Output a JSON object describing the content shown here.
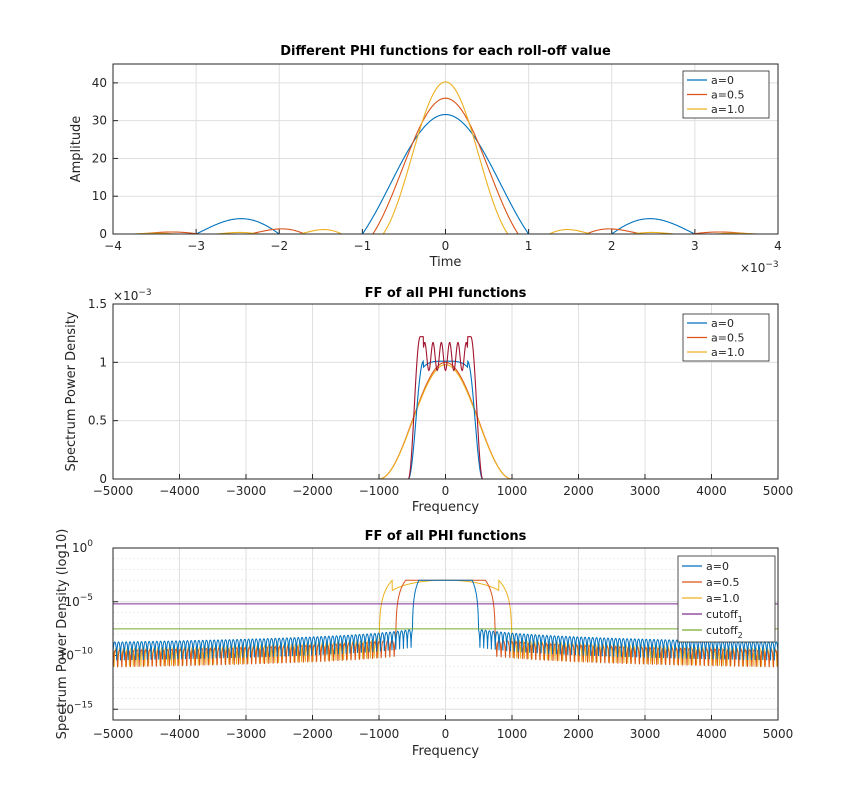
{
  "colors": {
    "blue": "#0072BD",
    "orange": "#D95319",
    "yellow": "#EDB120",
    "purple": "#7E2F8E",
    "green": "#77AC30",
    "darkred": "#A2142F"
  },
  "chart_data": [
    {
      "type": "line",
      "title": "Different PHI functions for each roll-off value",
      "xlabel": "Time",
      "ylabel": "Amplitude",
      "xlim": [
        -0.004,
        0.004
      ],
      "ylim": [
        0,
        45
      ],
      "x_exponent_label": "×10",
      "x_exponent_power": "-3",
      "xticks": [
        -4,
        -3,
        -2,
        -1,
        0,
        1,
        2,
        3,
        4
      ],
      "yticks": [
        0,
        10,
        20,
        30,
        40
      ],
      "grid": true,
      "legend_position": "top-right",
      "series": [
        {
          "name": "a=0",
          "color": "blue",
          "roll_off": 0,
          "peak": 31.6
        },
        {
          "name": "a=0.5",
          "color": "orange",
          "roll_off": 0.5,
          "peak": 35.6
        },
        {
          "name": "a=1.0",
          "color": "yellow",
          "roll_off": 1.0,
          "peak": 40.2
        }
      ]
    },
    {
      "type": "line",
      "title": "FF of all PHI functions",
      "xlabel": "Frequency",
      "ylabel": "Spectrum Power Density",
      "xlim": [
        -5000,
        5000
      ],
      "ylim": [
        0,
        0.0015
      ],
      "y_exponent_label": "×10",
      "y_exponent_power": "-3",
      "xticks": [
        -5000,
        -4000,
        -3000,
        -2000,
        -1000,
        0,
        1000,
        2000,
        3000,
        4000,
        5000
      ],
      "yticks": [
        0,
        0.5,
        1,
        1.5
      ],
      "grid": true,
      "legend_position": "top-right",
      "series": [
        {
          "name": "a=0",
          "color": "blue",
          "peak": 0.00101
        },
        {
          "name": "a=0.5",
          "color": "orange",
          "peak": 0.001
        },
        {
          "name": "a=1.0",
          "color": "yellow",
          "peak": 0.001
        }
      ],
      "extra_curve": {
        "color": "darkred",
        "peak": 0.00122
      }
    },
    {
      "type": "line",
      "title": "FF of all PHI functions",
      "xlabel": "Frequency",
      "ylabel": "Spectrum Power Density (log10)",
      "xlim": [
        -5000,
        5000
      ],
      "yscale": "log",
      "ylim": [
        1e-16,
        1
      ],
      "xticks": [
        -5000,
        -4000,
        -3000,
        -2000,
        -1000,
        0,
        1000,
        2000,
        3000,
        4000,
        5000
      ],
      "ytick_base": "10",
      "ytick_powers": [
        "0",
        "-5",
        "-10",
        "-15"
      ],
      "grid": true,
      "legend_position": "top-right",
      "series": [
        {
          "name": "a=0",
          "color": "blue"
        },
        {
          "name": "a=0.5",
          "color": "orange"
        },
        {
          "name": "a=1.0",
          "color": "yellow"
        },
        {
          "name": "cutoff",
          "subscript": "1",
          "color": "purple",
          "value": 6.3e-06
        },
        {
          "name": "cutoff",
          "subscript": "2",
          "color": "green",
          "value": 3e-08
        }
      ]
    }
  ]
}
